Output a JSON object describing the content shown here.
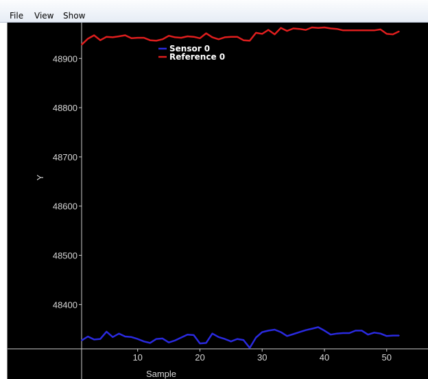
{
  "menu": {
    "items": [
      "File",
      "View",
      "Show"
    ]
  },
  "chart_data": {
    "type": "line",
    "xlabel": "Sample",
    "ylabel": "Y",
    "xlim": [
      1,
      53
    ],
    "ylim": [
      48310,
      48970
    ],
    "xticks": [
      10,
      20,
      30,
      40,
      50
    ],
    "yticks": [
      48400,
      48500,
      48600,
      48700,
      48800,
      48900
    ],
    "grid": false,
    "legend_position": "top-center",
    "series": [
      {
        "name": "Sensor 0",
        "color": "#2a2ae0",
        "x": [
          1,
          2,
          3,
          4,
          5,
          6,
          7,
          8,
          9,
          10,
          11,
          12,
          13,
          14,
          15,
          16,
          17,
          18,
          19,
          20,
          21,
          22,
          23,
          24,
          25,
          26,
          27,
          28,
          29,
          30,
          31,
          32,
          33,
          34,
          35,
          36,
          37,
          38,
          39,
          40,
          41,
          42,
          43,
          44,
          45,
          46,
          47,
          48,
          49,
          50,
          51,
          52
        ],
        "y": [
          48327,
          48335,
          48329,
          48330,
          48345,
          48334,
          48341,
          48335,
          48334,
          48330,
          48325,
          48322,
          48330,
          48331,
          48323,
          48327,
          48333,
          48339,
          48338,
          48321,
          48322,
          48341,
          48334,
          48330,
          48325,
          48330,
          48328,
          48312,
          48333,
          48344,
          48347,
          48349,
          48344,
          48336,
          48340,
          48344,
          48348,
          48351,
          48354,
          48347,
          48339,
          48341,
          48342,
          48342,
          48347,
          48347,
          48339,
          48343,
          48341,
          48336,
          48337,
          48337
        ]
      },
      {
        "name": "Reference 0",
        "color": "#e01e1e",
        "x": [
          1,
          2,
          3,
          4,
          5,
          6,
          7,
          8,
          9,
          10,
          11,
          12,
          13,
          14,
          15,
          16,
          17,
          18,
          19,
          20,
          21,
          22,
          23,
          24,
          25,
          26,
          27,
          28,
          29,
          30,
          31,
          32,
          33,
          34,
          35,
          36,
          37,
          38,
          39,
          40,
          41,
          42,
          43,
          44,
          45,
          46,
          47,
          48,
          49,
          50,
          51,
          52
        ],
        "y": [
          48928,
          48940,
          48947,
          48937,
          48944,
          48943,
          48945,
          48947,
          48941,
          48942,
          48942,
          48937,
          48936,
          48939,
          48946,
          48943,
          48942,
          48945,
          48944,
          48941,
          48951,
          48943,
          48939,
          48943,
          48944,
          48944,
          48937,
          48936,
          48952,
          48950,
          48958,
          48949,
          48962,
          48956,
          48961,
          48960,
          48958,
          48963,
          48962,
          48963,
          48961,
          48960,
          48957,
          48957,
          48957,
          48957,
          48957,
          48957,
          48959,
          48950,
          48949,
          48955
        ]
      }
    ]
  }
}
